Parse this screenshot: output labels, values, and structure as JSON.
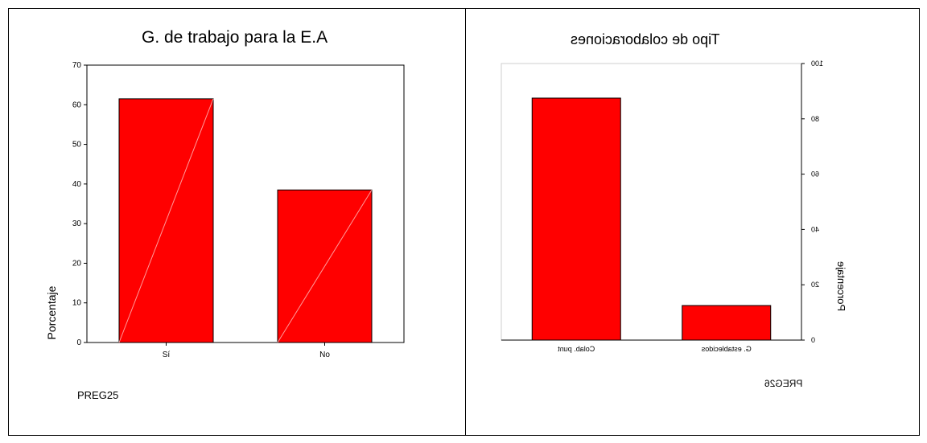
{
  "chart_data": [
    {
      "type": "bar",
      "title": "G. de trabajo para la E.A",
      "xlabel": "PREG25",
      "ylabel": "Porcentaje",
      "categories": [
        "Sí",
        "No"
      ],
      "values": [
        61.5,
        38.5
      ],
      "ylim": [
        0,
        70
      ],
      "yticks": [
        0,
        10,
        20,
        30,
        40,
        50,
        60,
        70
      ],
      "bar_color": "#ff0000",
      "grid": false
    },
    {
      "type": "bar",
      "mirrored": true,
      "title": "Tipo de colaboraciones",
      "xlabel": "PREG26",
      "ylabel": "Porcentaje",
      "categories": [
        "Colab. punt",
        "G. establecidos"
      ],
      "values": [
        87.5,
        12.5
      ],
      "ylim": [
        0,
        100
      ],
      "yticks": [
        0,
        20,
        40,
        60,
        80,
        100
      ],
      "bar_color": "#ff0000",
      "grid": false
    }
  ]
}
